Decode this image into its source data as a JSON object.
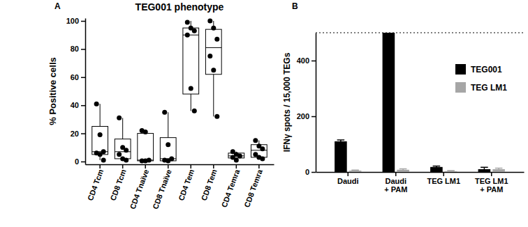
{
  "chart_data": [
    {
      "type": "box",
      "panel_label": "A",
      "title": "TEG001 phenotype",
      "y_label": "% Positive cells",
      "categories": [
        "CD4 Tcm",
        "CD8 Tcm",
        "CD4 Tnaïve",
        "CD8 Tnaïve",
        "CD4 Tem",
        "CD8 Tem",
        "CD4 Temra",
        "CD8 Temra"
      ],
      "boxes": [
        {
          "min": 1,
          "q1": 5,
          "median": 7,
          "q3": 25,
          "max": 41
        },
        {
          "min": 0.5,
          "q1": 2,
          "median": 7,
          "q3": 16,
          "max": 31
        },
        {
          "min": 0,
          "q1": 0.5,
          "median": 1,
          "q3": 20,
          "max": 22
        },
        {
          "min": 0,
          "q1": 0.5,
          "median": 2,
          "q3": 17,
          "max": 35
        },
        {
          "min": 36,
          "q1": 48,
          "median": 90,
          "q3": 95,
          "max": 100
        },
        {
          "min": 32,
          "q1": 62,
          "median": 81,
          "q3": 94,
          "max": 100
        },
        {
          "min": 1,
          "q1": 2.5,
          "median": 4,
          "q3": 6,
          "max": 7
        },
        {
          "min": 2,
          "q1": 3,
          "median": 8,
          "q3": 12,
          "max": 15
        }
      ],
      "points": [
        [
          41,
          19,
          7,
          6,
          5,
          1
        ],
        [
          31,
          10,
          8,
          5,
          2,
          1
        ],
        [
          22,
          21,
          1,
          0.5,
          0.5
        ],
        [
          35,
          12,
          2,
          1,
          0.5
        ],
        [
          99,
          95,
          93,
          90,
          52,
          36
        ],
        [
          100,
          95,
          87,
          75,
          65,
          32
        ],
        [
          7,
          5,
          4,
          3,
          1
        ],
        [
          15,
          11,
          9,
          5,
          3,
          2
        ]
      ],
      "color": "#000000",
      "ylim": [
        -2,
        102
      ],
      "yticks": [
        0,
        20,
        40,
        60,
        80,
        100
      ]
    },
    {
      "type": "bar",
      "panel_label": "B",
      "y_label": "IFNγ spots / 15,000 TEGs",
      "categories": [
        "Daudi",
        "Daudi + PAM",
        "TEG LM1",
        "TEG LM1 + PAM"
      ],
      "series": [
        {
          "name": "TEG001",
          "color": "#000000",
          "values": [
            110,
            500,
            18,
            10
          ],
          "errors": [
            5,
            0,
            3,
            7
          ]
        },
        {
          "name": "TEG LM1",
          "color": "#a6a6a6",
          "values": [
            5,
            8,
            3,
            10
          ],
          "errors": [
            2,
            3,
            2,
            4
          ]
        }
      ],
      "limit_line": 500,
      "legend": "upper right",
      "ylim": [
        0,
        500
      ],
      "yticks": [
        0,
        200,
        400
      ]
    }
  ]
}
